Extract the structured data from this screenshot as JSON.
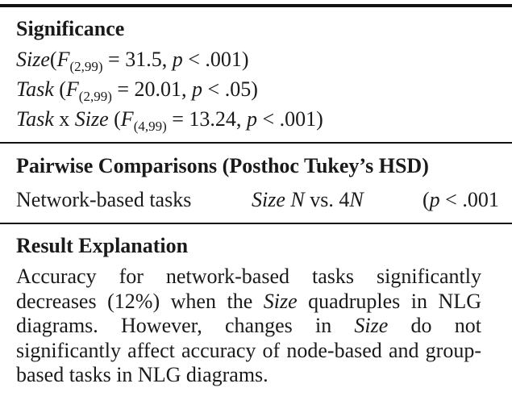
{
  "significance": {
    "heading": "Significance",
    "size_line": {
      "factor": "Size",
      "F": "F",
      "df": "(2,99)",
      "stat": " = 31.5, ",
      "p": "p",
      "rest": " < .001)"
    },
    "task_line": {
      "factor": "Task",
      "F": "F",
      "df": "(2,99)",
      "stat": " = 20.01, ",
      "p": "p",
      "rest": " < .05)"
    },
    "interaction_line": {
      "factor1": "Task",
      "x": " x ",
      "factor2": "Size",
      "F": "F",
      "df": "(4,99)",
      "stat": " = 13.24, ",
      "p": "p",
      "rest": " < .001)"
    }
  },
  "pairwise": {
    "heading": "Pairwise Comparisons (Posthoc Tukey’s HSD)",
    "row": {
      "task": "Network-based tasks",
      "factor": "Size",
      "n1": "N",
      "vs": " vs. 4",
      "n2": "N",
      "p_open": "(",
      "p": "p",
      "p_rest": " < .001"
    }
  },
  "result": {
    "heading": "Result Explanation",
    "text_1": "Accuracy for network-based tasks significantly decreases (12%) when the ",
    "em_1": "Size",
    "text_2": " quadruples in NLG diagrams. However, changes in ",
    "em_2": "Size",
    "text_3": " do not significantly affect accuracy of node-based and group-based tasks in NLG diagrams."
  }
}
